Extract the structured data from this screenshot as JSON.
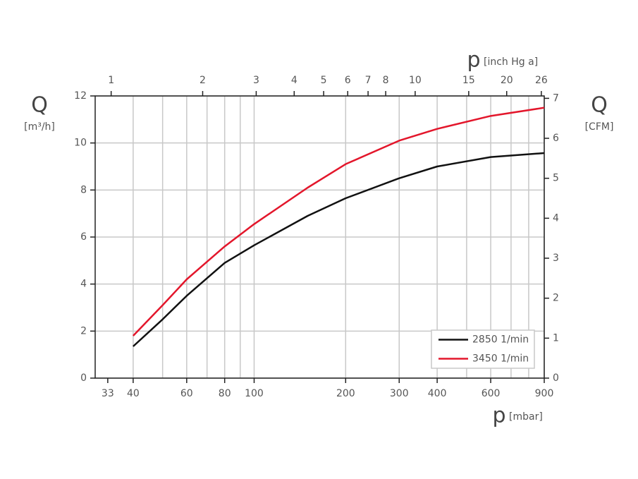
{
  "chart_data": {
    "type": "line",
    "xlabel": "p",
    "xlabel_unit": "[mbar]",
    "x2label": "p",
    "x2label_unit": "[inch Hg a]",
    "ylabel": "Q",
    "ylabel_unit": "[m³/h]",
    "y2label": "Q",
    "y2label_unit": "[CFM]",
    "xscale": "log",
    "xlim": [
      30,
      900
    ],
    "xticks": [
      33,
      40,
      60,
      80,
      100,
      200,
      300,
      400,
      600,
      900
    ],
    "xgrid": [
      40,
      50,
      60,
      70,
      80,
      90,
      100,
      200,
      300,
      400,
      500,
      600,
      700,
      800,
      900
    ],
    "x2lim": [
      0.886,
      26.58
    ],
    "x2ticks": [
      1,
      2,
      3,
      4,
      5,
      6,
      7,
      8,
      10,
      15,
      20,
      26
    ],
    "ylim": [
      0,
      12
    ],
    "yticks": [
      0,
      2,
      4,
      6,
      8,
      10,
      12
    ],
    "y2lim": [
      0,
      7.06
    ],
    "y2ticks": [
      0,
      1,
      2,
      3,
      4,
      5,
      6,
      7
    ],
    "grid": true,
    "legend": "lower right",
    "x": [
      40,
      50,
      60,
      80,
      100,
      150,
      200,
      300,
      400,
      600,
      900
    ],
    "series": [
      {
        "name": "2850 1/min",
        "color": "#111111",
        "values": [
          1.35,
          2.5,
          3.5,
          4.9,
          5.65,
          6.9,
          7.65,
          8.5,
          9.0,
          9.4,
          9.57
        ]
      },
      {
        "name": "3450 1/min",
        "color": "#e3162b",
        "values": [
          1.8,
          3.1,
          4.2,
          5.6,
          6.55,
          8.1,
          9.1,
          10.1,
          10.6,
          11.15,
          11.5
        ]
      }
    ]
  }
}
